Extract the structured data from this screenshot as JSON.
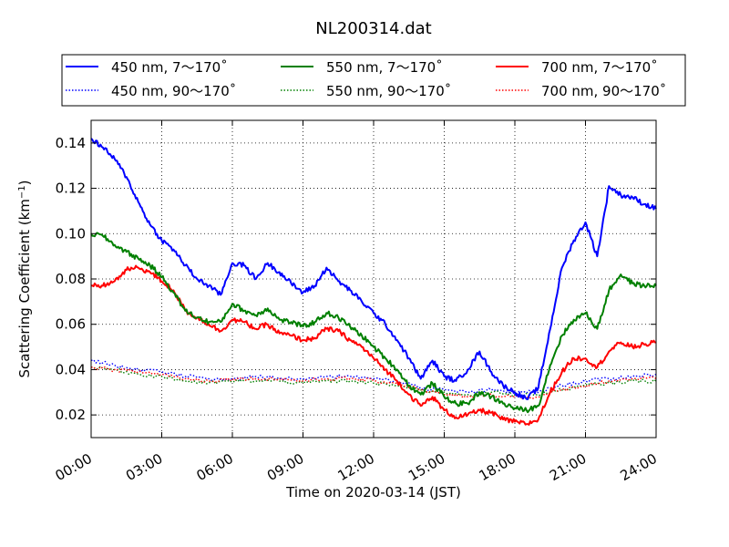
{
  "chart_data": {
    "type": "line",
    "title": "NL200314.dat",
    "xlabel": "Time on 2020-03-14 (JST)",
    "ylabel_main": "Scattering Coefficient (km",
    "ylabel_sup": "−1",
    "ylabel_close": ")",
    "x_unit": "hours since 2020-03-14 00:00 JST",
    "xlim": [
      0,
      24
    ],
    "ylim": [
      0.01,
      0.15
    ],
    "grid": true,
    "legend_position": "top",
    "x_ticks": [
      {
        "value": 0,
        "label": "00:00"
      },
      {
        "value": 3,
        "label": "03:00"
      },
      {
        "value": 6,
        "label": "06:00"
      },
      {
        "value": 9,
        "label": "09:00"
      },
      {
        "value": 12,
        "label": "12:00"
      },
      {
        "value": 15,
        "label": "15:00"
      },
      {
        "value": 18,
        "label": "18:00"
      },
      {
        "value": 21,
        "label": "21:00"
      },
      {
        "value": 24,
        "label": "24:00"
      }
    ],
    "y_ticks": [
      {
        "value": 0.02,
        "label": "0.02"
      },
      {
        "value": 0.04,
        "label": "0.04"
      },
      {
        "value": 0.06,
        "label": "0.06"
      },
      {
        "value": 0.08,
        "label": "0.08"
      },
      {
        "value": 0.1,
        "label": "0.10"
      },
      {
        "value": 0.12,
        "label": "0.12"
      },
      {
        "value": 0.14,
        "label": "0.14"
      }
    ],
    "series": [
      {
        "name": "450 nm, 7～170˚",
        "color": "#0000ff",
        "style": "solid",
        "x": [
          0,
          0.5,
          1,
          1.5,
          2,
          2.5,
          3,
          3.5,
          4,
          4.5,
          5,
          5.5,
          6,
          6.5,
          7,
          7.5,
          8,
          8.5,
          9,
          9.5,
          10,
          10.5,
          11,
          11.5,
          12,
          12.5,
          13,
          13.5,
          14,
          14.5,
          15,
          15.5,
          16,
          16.5,
          17,
          17.5,
          18,
          18.5,
          19,
          19.5,
          20,
          20.5,
          21,
          21.5,
          22,
          22.5,
          23,
          23.5,
          24
        ],
        "y": [
          0.142,
          0.138,
          0.133,
          0.125,
          0.114,
          0.104,
          0.097,
          0.093,
          0.086,
          0.08,
          0.077,
          0.073,
          0.087,
          0.086,
          0.08,
          0.087,
          0.083,
          0.078,
          0.074,
          0.077,
          0.085,
          0.079,
          0.075,
          0.07,
          0.065,
          0.06,
          0.053,
          0.045,
          0.036,
          0.044,
          0.037,
          0.035,
          0.04,
          0.048,
          0.039,
          0.033,
          0.03,
          0.027,
          0.032,
          0.058,
          0.085,
          0.097,
          0.105,
          0.09,
          0.121,
          0.117,
          0.116,
          0.113,
          0.111
        ]
      },
      {
        "name": "450 nm, 90～170˚",
        "color": "#0000ff",
        "style": "dotted",
        "x": [
          0,
          1,
          2,
          3,
          4,
          5,
          6,
          7,
          8,
          9,
          10,
          11,
          12,
          13,
          14,
          15,
          16,
          17,
          18,
          19,
          20,
          21,
          22,
          23,
          24
        ],
        "y": [
          0.044,
          0.042,
          0.04,
          0.039,
          0.037,
          0.036,
          0.036,
          0.037,
          0.036,
          0.036,
          0.037,
          0.037,
          0.036,
          0.035,
          0.032,
          0.031,
          0.03,
          0.031,
          0.03,
          0.03,
          0.033,
          0.035,
          0.036,
          0.037,
          0.038
        ]
      },
      {
        "name": "550 nm, 7～170˚",
        "color": "#008000",
        "style": "solid",
        "x": [
          0,
          0.5,
          1,
          1.5,
          2,
          2.5,
          3,
          3.5,
          4,
          4.5,
          5,
          5.5,
          6,
          6.5,
          7,
          7.5,
          8,
          8.5,
          9,
          9.5,
          10,
          10.5,
          11,
          11.5,
          12,
          12.5,
          13,
          13.5,
          14,
          14.5,
          15,
          15.5,
          16,
          16.5,
          17,
          17.5,
          18,
          18.5,
          19,
          19.5,
          20,
          20.5,
          21,
          21.5,
          22,
          22.5,
          23,
          23.5,
          24
        ],
        "y": [
          0.1,
          0.099,
          0.095,
          0.092,
          0.089,
          0.086,
          0.081,
          0.074,
          0.066,
          0.063,
          0.061,
          0.061,
          0.069,
          0.066,
          0.064,
          0.067,
          0.062,
          0.061,
          0.059,
          0.061,
          0.065,
          0.063,
          0.059,
          0.055,
          0.05,
          0.045,
          0.04,
          0.033,
          0.029,
          0.034,
          0.028,
          0.025,
          0.025,
          0.03,
          0.028,
          0.025,
          0.023,
          0.022,
          0.024,
          0.042,
          0.055,
          0.062,
          0.065,
          0.058,
          0.075,
          0.082,
          0.078,
          0.077,
          0.077
        ]
      },
      {
        "name": "550 nm, 90～170˚",
        "color": "#008000",
        "style": "dotted",
        "x": [
          0,
          1,
          2,
          3,
          4,
          5,
          6,
          7,
          8,
          9,
          10,
          11,
          12,
          13,
          14,
          15,
          16,
          17,
          18,
          19,
          20,
          21,
          22,
          23,
          24
        ],
        "y": [
          0.041,
          0.04,
          0.038,
          0.037,
          0.035,
          0.034,
          0.035,
          0.035,
          0.035,
          0.034,
          0.035,
          0.035,
          0.034,
          0.033,
          0.031,
          0.03,
          0.029,
          0.03,
          0.029,
          0.029,
          0.031,
          0.033,
          0.034,
          0.035,
          0.035
        ]
      },
      {
        "name": "700 nm, 7～170˚",
        "color": "#ff0000",
        "style": "solid",
        "x": [
          0,
          0.5,
          1,
          1.5,
          2,
          2.5,
          3,
          3.5,
          4,
          4.5,
          5,
          5.5,
          6,
          6.5,
          7,
          7.5,
          8,
          8.5,
          9,
          9.5,
          10,
          10.5,
          11,
          11.5,
          12,
          12.5,
          13,
          13.5,
          14,
          14.5,
          15,
          15.5,
          16,
          16.5,
          17,
          17.5,
          18,
          18.5,
          19,
          19.5,
          20,
          20.5,
          21,
          21.5,
          22,
          22.5,
          23,
          23.5,
          24
        ],
        "y": [
          0.077,
          0.077,
          0.079,
          0.084,
          0.085,
          0.083,
          0.079,
          0.075,
          0.066,
          0.063,
          0.06,
          0.057,
          0.062,
          0.061,
          0.058,
          0.06,
          0.056,
          0.055,
          0.053,
          0.054,
          0.058,
          0.057,
          0.053,
          0.05,
          0.045,
          0.04,
          0.035,
          0.029,
          0.024,
          0.028,
          0.022,
          0.019,
          0.02,
          0.022,
          0.021,
          0.018,
          0.017,
          0.016,
          0.018,
          0.03,
          0.039,
          0.045,
          0.045,
          0.041,
          0.048,
          0.052,
          0.05,
          0.051,
          0.052
        ]
      },
      {
        "name": "700 nm, 90～170˚",
        "color": "#ff0000",
        "style": "dotted",
        "x": [
          0,
          1,
          2,
          3,
          4,
          5,
          6,
          7,
          8,
          9,
          10,
          11,
          12,
          13,
          14,
          15,
          16,
          17,
          18,
          19,
          20,
          21,
          22,
          23,
          24
        ],
        "y": [
          0.041,
          0.04,
          0.039,
          0.038,
          0.036,
          0.035,
          0.036,
          0.036,
          0.036,
          0.035,
          0.036,
          0.036,
          0.035,
          0.034,
          0.031,
          0.029,
          0.028,
          0.029,
          0.028,
          0.028,
          0.031,
          0.033,
          0.035,
          0.036,
          0.036
        ]
      }
    ]
  }
}
